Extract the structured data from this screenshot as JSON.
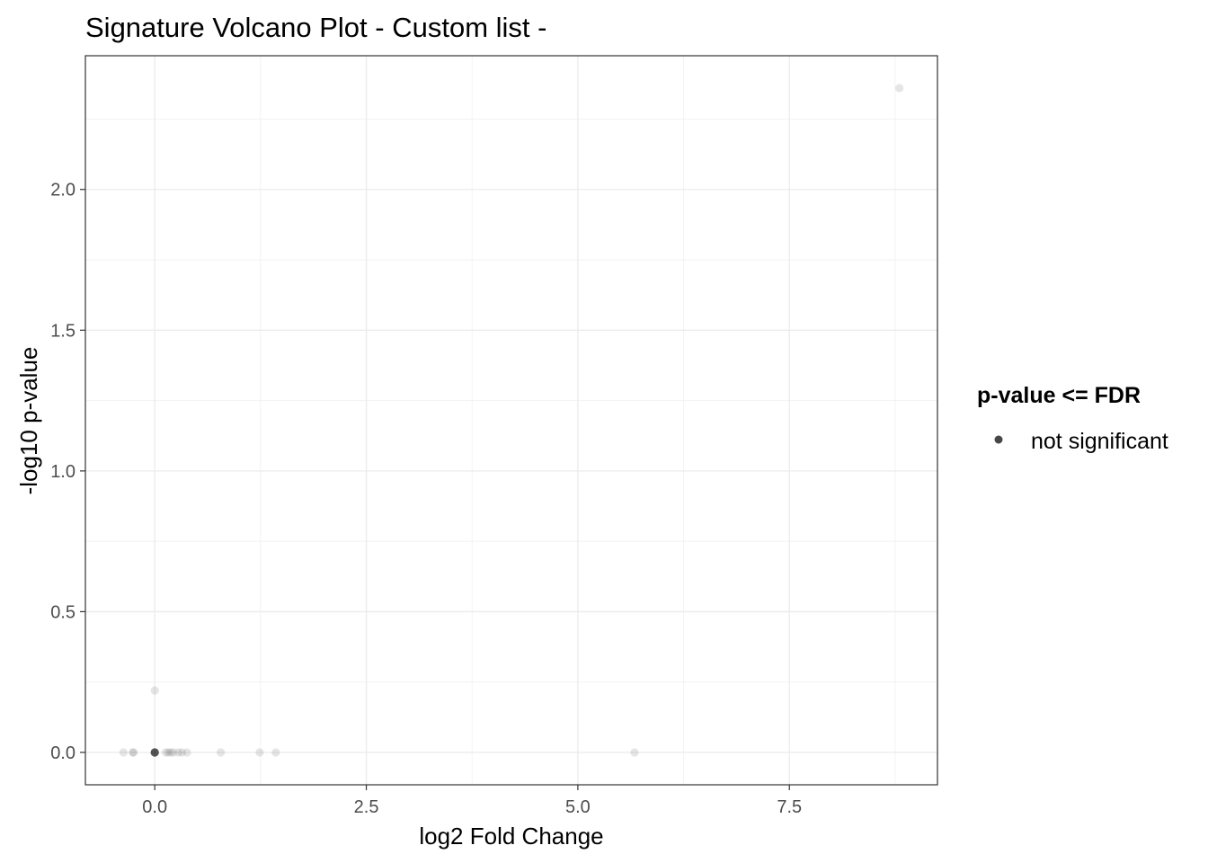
{
  "chart_data": {
    "type": "scatter",
    "title": "Signature Volcano Plot - Custom list -",
    "xlabel": "log2 Fold Change",
    "ylabel": "-log10 p-value",
    "xlim": [
      -0.82,
      9.25
    ],
    "ylim": [
      -0.115,
      2.475
    ],
    "x_ticks": [
      0.0,
      2.5,
      5.0,
      7.5
    ],
    "x_tick_labels": [
      "0.0",
      "2.5",
      "5.0",
      "7.5"
    ],
    "y_ticks": [
      0.0,
      0.5,
      1.0,
      1.5,
      2.0
    ],
    "y_tick_labels": [
      "0.0",
      "0.5",
      "1.0",
      "1.5",
      "2.0"
    ],
    "grid": true,
    "legend": {
      "title": "p-value <= FDR",
      "position": "right",
      "entries": [
        {
          "label": "not significant",
          "color": "#000000"
        }
      ]
    },
    "series": [
      {
        "name": "not significant",
        "color": "#000000",
        "opacity": 0.1,
        "points": [
          {
            "x": -0.37,
            "y": 0.0
          },
          {
            "x": -0.26,
            "y": 0.0
          },
          {
            "x": -0.25,
            "y": 0.0
          },
          {
            "x": 0.0,
            "y": 0.0
          },
          {
            "x": 0.0,
            "y": 0.0
          },
          {
            "x": 0.0,
            "y": 0.0
          },
          {
            "x": 0.0,
            "y": 0.0
          },
          {
            "x": 0.0,
            "y": 0.0
          },
          {
            "x": 0.0,
            "y": 0.0
          },
          {
            "x": 0.0,
            "y": 0.0
          },
          {
            "x": 0.0,
            "y": 0.0
          },
          {
            "x": 0.0,
            "y": 0.0
          },
          {
            "x": 0.0,
            "y": 0.0
          },
          {
            "x": 0.0,
            "y": 0.22
          },
          {
            "x": 0.13,
            "y": 0.0
          },
          {
            "x": 0.16,
            "y": 0.0
          },
          {
            "x": 0.19,
            "y": 0.0
          },
          {
            "x": 0.22,
            "y": 0.0
          },
          {
            "x": 0.28,
            "y": 0.0
          },
          {
            "x": 0.32,
            "y": 0.0
          },
          {
            "x": 0.38,
            "y": 0.0
          },
          {
            "x": 0.78,
            "y": 0.0
          },
          {
            "x": 1.24,
            "y": 0.0
          },
          {
            "x": 1.43,
            "y": 0.0
          },
          {
            "x": 5.67,
            "y": 0.0
          },
          {
            "x": 8.8,
            "y": 2.36
          }
        ]
      }
    ]
  }
}
